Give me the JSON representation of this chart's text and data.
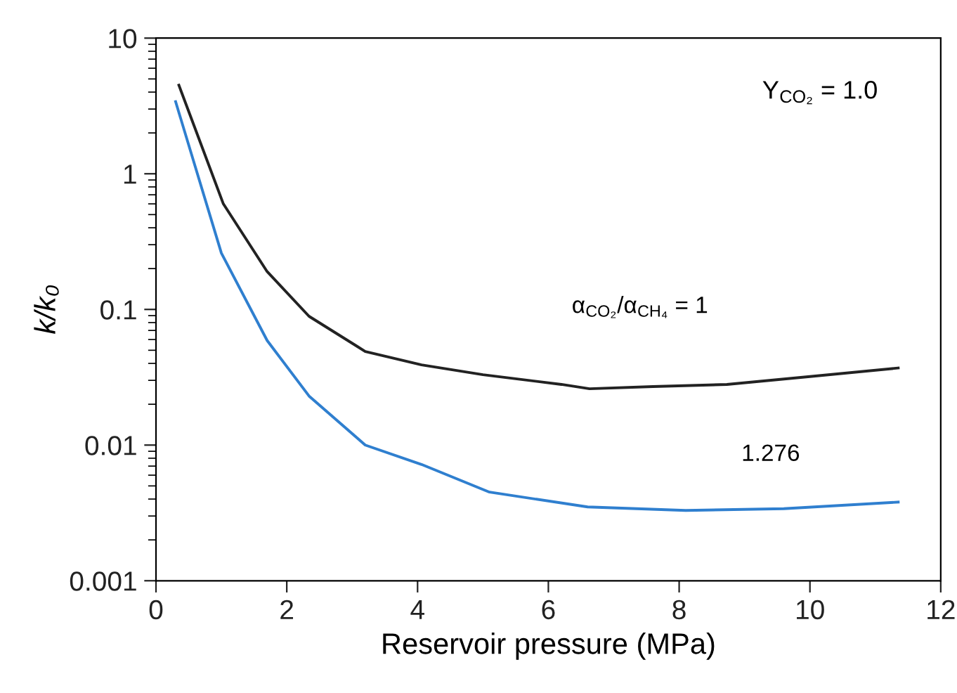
{
  "chart_data": {
    "type": "line",
    "xlabel": "Reservoir pressure (MPa)",
    "ylabel": "k/k₀",
    "log": "y",
    "xlim": [
      0,
      12
    ],
    "ylim": [
      0.001,
      10
    ],
    "xticks": [
      0,
      2,
      4,
      6,
      8,
      10,
      12
    ],
    "yticks": [
      0.001,
      0.01,
      0.1,
      1,
      10
    ],
    "marker": "none",
    "line_style": "solid",
    "series": [
      {
        "color": "#222222",
        "x": [
          0.35,
          1.03,
          1.7,
          2.34,
          3.2,
          4.06,
          5.0,
          6.2,
          6.63,
          7.6,
          8.73,
          10.0,
          11.35
        ],
        "values": [
          4.5,
          0.6,
          0.19,
          0.089,
          0.049,
          0.039,
          0.033,
          0.028,
          0.026,
          0.027,
          0.028,
          0.032,
          0.037
        ]
      },
      {
        "color": "#2f7fcf",
        "x": [
          0.3,
          1.0,
          1.7,
          2.34,
          3.2,
          4.06,
          5.1,
          6.6,
          8.1,
          9.6,
          11.35
        ],
        "values": [
          3.4,
          0.26,
          0.059,
          0.023,
          0.01,
          0.0072,
          0.0045,
          0.0035,
          0.0033,
          0.0034,
          0.0038
        ]
      }
    ],
    "annotations": [
      "Y$_{CO₂}$ = 1.0",
      {
        "text": "α$_{CO₂}$/α$_{CH₄}$ = 1",
        "x": 7.4,
        "y": 0.027
      },
      {
        "text": "1.276",
        "x": 9.4,
        "y": 0.0034
      }
    ]
  }
}
